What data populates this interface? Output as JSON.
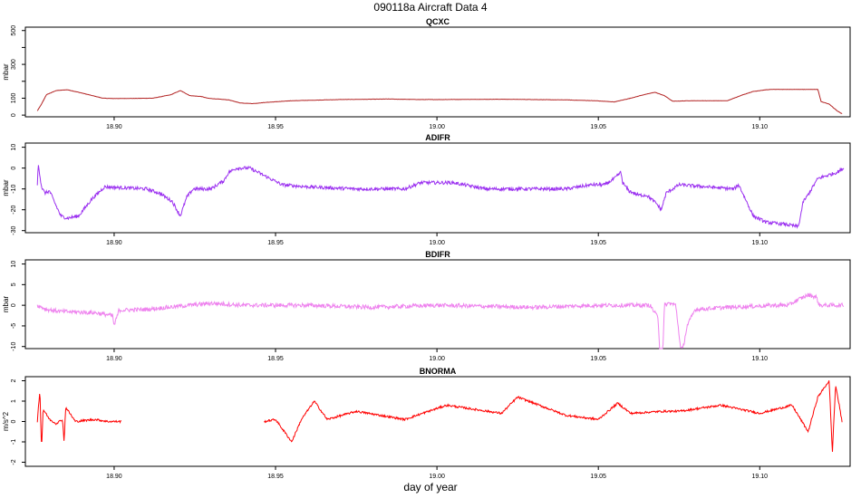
{
  "title": "090118a   Aircraft Data 4",
  "xlabel": "day of year",
  "chart_data": [
    {
      "type": "line",
      "title": "QCXC",
      "ylabel": "mbar",
      "color": "#b22222",
      "xlim": [
        18.8725,
        19.128
      ],
      "ylim": [
        -10,
        520
      ],
      "yticks": [
        0,
        100,
        200,
        300,
        400,
        500
      ],
      "yticklabels": [
        "0",
        "100",
        "",
        "300",
        "",
        "500"
      ],
      "xticks": [
        18.9,
        18.95,
        19.0,
        19.05,
        19.1
      ],
      "xticklabels": [
        "18.90",
        "18.95",
        "19.00",
        "19.05",
        "19.10"
      ],
      "noise": 0.8,
      "series": [
        {
          "x": [
            18.8762,
            18.8775,
            18.879,
            18.882,
            18.8855,
            18.889,
            18.8965,
            18.9,
            18.912,
            18.9175,
            18.9205,
            18.9235,
            18.927,
            18.929,
            18.932,
            18.9355,
            18.939,
            18.943,
            18.947,
            18.955,
            18.97,
            18.985,
            18.995,
            19.0,
            19.02,
            19.04,
            19.049,
            19.055,
            19.06,
            19.064,
            19.0675,
            19.0705,
            19.073,
            19.078,
            19.09,
            19.094,
            19.098,
            19.102,
            19.104,
            19.118,
            19.119,
            19.1215,
            19.124,
            19.1255
          ],
          "y": [
            25,
            65,
            120,
            145,
            150,
            135,
            100,
            98,
            100,
            120,
            145,
            115,
            110,
            100,
            95,
            90,
            72,
            68,
            75,
            85,
            92,
            95,
            92,
            92,
            94,
            90,
            85,
            78,
            100,
            120,
            135,
            115,
            82,
            85,
            85,
            115,
            140,
            150,
            152,
            152,
            80,
            65,
            25,
            8
          ]
        }
      ]
    },
    {
      "type": "line",
      "title": "ADIFR",
      "ylabel": "mbar",
      "color": "#9b30f0",
      "xlim": [
        18.8725,
        19.128
      ],
      "ylim": [
        -31,
        12
      ],
      "yticks": [
        -30,
        -20,
        -10,
        0,
        10
      ],
      "yticklabels": [
        "-30",
        "-20",
        "-10",
        "0",
        "10"
      ],
      "xticks": [
        18.9,
        18.95,
        19.0,
        19.05,
        19.1
      ],
      "xticklabels": [
        "18.90",
        "18.95",
        "19.00",
        "19.05",
        "19.10"
      ],
      "noise": 0.8,
      "series": [
        {
          "x": [
            18.8762,
            18.8765,
            18.8775,
            18.8785,
            18.88,
            18.882,
            18.8835,
            18.8855,
            18.889,
            18.893,
            18.897,
            18.91,
            18.914,
            18.918,
            18.9205,
            18.9225,
            18.9245,
            18.93,
            18.934,
            18.9355,
            18.938,
            18.942,
            18.947,
            18.952,
            18.96,
            18.975,
            18.99,
            18.995,
            19.005,
            19.015,
            19.04,
            19.048,
            19.052,
            19.055,
            19.057,
            19.0575,
            19.0595,
            19.0625,
            19.065,
            19.068,
            19.0695,
            19.071,
            19.075,
            19.092,
            19.0935,
            19.098,
            19.102,
            19.108,
            19.1115,
            19.112,
            19.1135,
            19.1145,
            19.118,
            19.124,
            19.126
          ],
          "y": [
            -8,
            2,
            -9,
            -12,
            -11,
            -18,
            -23,
            -24,
            -23,
            -15,
            -9,
            -10,
            -12,
            -16,
            -23,
            -14,
            -10,
            -10,
            -6,
            -2,
            0,
            0,
            -4,
            -8,
            -9,
            -10,
            -10,
            -7,
            -7,
            -10,
            -10,
            -8,
            -8,
            -5,
            -2,
            -7,
            -11,
            -13,
            -13,
            -17,
            -20,
            -12,
            -8,
            -10,
            -8,
            -23,
            -26,
            -27,
            -28,
            -28,
            -16,
            -14,
            -5,
            -2,
            0
          ]
        }
      ]
    },
    {
      "type": "line",
      "title": "BDIFR",
      "ylabel": "mbar",
      "color": "#ee82ee",
      "xlim": [
        18.8725,
        19.128
      ],
      "ylim": [
        -10.5,
        11
      ],
      "yticks": [
        -10,
        -5,
        0,
        5,
        10
      ],
      "yticklabels": [
        "-10",
        "-5",
        "0",
        "5",
        "10"
      ],
      "xticks": [
        18.9,
        18.95,
        19.0,
        19.05,
        19.1
      ],
      "xticklabels": [
        "18.90",
        "18.95",
        "19.00",
        "19.05",
        "19.10"
      ],
      "noise": 0.5,
      "series": [
        {
          "x": [
            18.8762,
            18.879,
            18.8835,
            18.894,
            18.8995,
            18.9,
            18.9015,
            18.91,
            18.93,
            18.94,
            18.96,
            18.98,
            19.0,
            19.03,
            19.05,
            19.066,
            19.0685,
            19.069,
            19.07,
            19.0705,
            19.072,
            19.074,
            19.0755,
            19.0762,
            19.0775,
            19.08,
            19.09,
            19.105,
            19.109,
            19.111,
            19.115,
            19.1175,
            19.1185,
            19.126
          ],
          "y": [
            0,
            -1,
            -1.5,
            -1.8,
            -2.5,
            -5,
            -1.2,
            -1,
            0.5,
            0,
            0,
            -0.5,
            0,
            -0.5,
            0,
            0,
            -3,
            -10.5,
            -10.5,
            0,
            0.5,
            0,
            -10.5,
            -10.5,
            -5,
            -1,
            -0.5,
            0,
            0,
            1,
            2.5,
            2,
            0,
            0
          ]
        }
      ]
    },
    {
      "type": "line",
      "title": "BNORMA",
      "ylabel": "m/s^2",
      "color": "#ff0000",
      "xlim": [
        18.8725,
        19.128
      ],
      "ylim": [
        -2.2,
        2.2
      ],
      "yticks": [
        -2,
        -1,
        0,
        1,
        2
      ],
      "yticklabels": [
        "-2",
        "-1",
        "0",
        "1",
        "2"
      ],
      "xticks": [
        18.9,
        18.95,
        19.0,
        19.05,
        19.1
      ],
      "xticklabels": [
        "18.90",
        "18.95",
        "19.00",
        "19.05",
        "19.10"
      ],
      "noise": 0.05,
      "series": [
        {
          "x": [
            18.8762,
            18.877,
            18.8775,
            18.878,
            18.88,
            18.882,
            18.884,
            18.8845,
            18.885,
            18.888,
            18.894,
            18.898,
            18.9022
          ],
          "y": [
            0,
            1.6,
            -1.4,
            0.6,
            0.1,
            -0.1,
            0.1,
            -1.0,
            0.7,
            0,
            0.1,
            0,
            0
          ]
        },
        {
          "x": [
            18.9465,
            18.95,
            18.955,
            18.958,
            18.962,
            18.966,
            18.975,
            18.99,
            19.003,
            19.02,
            19.025,
            19.04,
            19.05,
            19.056,
            19.06,
            19.07,
            19.075,
            19.088,
            19.1,
            19.11,
            19.115,
            19.118,
            19.1215,
            19.1225,
            19.1235,
            19.1255
          ],
          "y": [
            0,
            0.1,
            -1.0,
            0.1,
            1.0,
            0.1,
            0.5,
            0.1,
            0.8,
            0.4,
            1.2,
            0.3,
            0.1,
            0.9,
            0.4,
            0.5,
            0.5,
            0.8,
            0.4,
            0.8,
            -0.5,
            1.2,
            2.0,
            -1.5,
            1.8,
            0
          ]
        }
      ]
    }
  ]
}
